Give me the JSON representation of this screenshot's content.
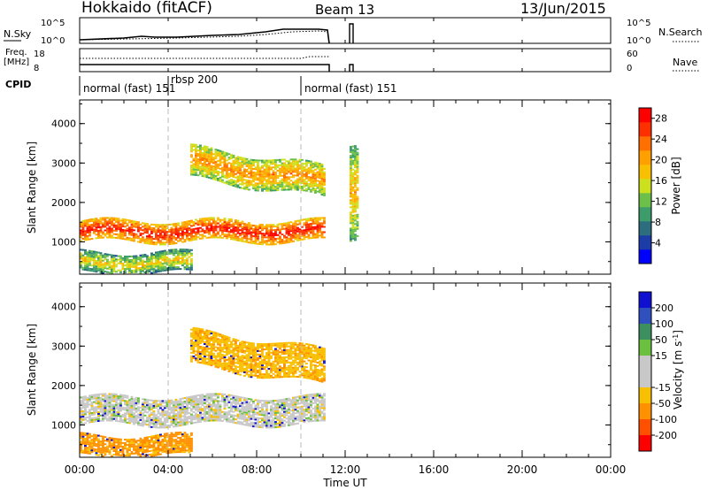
{
  "header": {
    "station": "Hokkaido (fitACF)",
    "beam": "Beam 13",
    "date": "13/Jun/2015"
  },
  "noise_panel": {
    "left_label": "N.Sky",
    "right_label": "N.Search",
    "left_ticks": [
      "10^5",
      "10^0"
    ],
    "right_ticks": [
      "10^5",
      "10^0"
    ]
  },
  "freq_panel": {
    "left_label": "Freq.",
    "left_unit": "[MHz]",
    "left_ticks": [
      "18",
      "8"
    ],
    "right_ticks": [
      "60",
      "0"
    ],
    "right_label": "Nave"
  },
  "cpid": {
    "label": "CPID",
    "segments": [
      {
        "label": "normal (fast) 151",
        "start": 0.0
      },
      {
        "label": "rbsp 200",
        "start": 4.0
      },
      {
        "label": "normal (fast) 151",
        "start": 10.0
      }
    ]
  },
  "chart_data": [
    {
      "type": "heatmap",
      "title": "",
      "ylabel": "Slant Range [km]",
      "xlabel": "Time UT",
      "xticks": [
        "00:00",
        "04:00",
        "08:00",
        "12:00",
        "16:00",
        "20:00",
        "00:00"
      ],
      "xlim_hours": [
        0,
        24
      ],
      "yticks": [
        "1000",
        "2000",
        "3000",
        "4000"
      ],
      "ylim": [
        180,
        4600
      ],
      "colorbar": {
        "label": "Power [dB]",
        "ticks": [
          "4",
          "8",
          "12",
          "16",
          "20",
          "24",
          "28"
        ],
        "range": [
          0,
          30
        ],
        "colors": [
          "#0000ff",
          "#1c3ca8",
          "#2c6e7e",
          "#3c9c6a",
          "#6cc04a",
          "#cde01e",
          "#f8c000",
          "#ffa000",
          "#ff7000",
          "#ff3000",
          "#ff0000"
        ]
      },
      "echo_regions": [
        {
          "t0": 0.0,
          "t1": 11.0,
          "r_low": 1000,
          "r_high": 1500,
          "power": 22
        },
        {
          "t0": 5.0,
          "t1": 11.0,
          "r_low": 2600,
          "r_high": 3400,
          "power": 16
        },
        {
          "t0": 0.0,
          "t1": 5.0,
          "r_low": 200,
          "r_high": 700,
          "power": 12
        },
        {
          "t0": 12.2,
          "t1": 12.5,
          "r_low": 1000,
          "r_high": 3400,
          "power": 14
        }
      ]
    },
    {
      "type": "heatmap",
      "title": "",
      "ylabel": "Slant Range [km]",
      "xlabel": "Time UT",
      "xticks": [
        "00:00",
        "04:00",
        "08:00",
        "12:00",
        "16:00",
        "20:00",
        "00:00"
      ],
      "xlim_hours": [
        0,
        24
      ],
      "yticks": [
        "1000",
        "2000",
        "3000",
        "4000"
      ],
      "ylim": [
        180,
        4600
      ],
      "colorbar": {
        "label": "Velocity [m s^-1]",
        "ticks": [
          "200",
          "100",
          "50",
          "15",
          "-15",
          "-50",
          "-100",
          "-200"
        ],
        "colors": [
          "#1010d0",
          "#3050c0",
          "#3c9060",
          "#6cc040",
          "#c8c8c8",
          "#c8c8c8",
          "#f8c000",
          "#ff9000",
          "#ff5000",
          "#ff0000"
        ]
      },
      "echo_regions": [
        {
          "t0": 0.0,
          "t1": 11.0,
          "r_low": 1000,
          "r_high": 1700,
          "velocity": 0
        },
        {
          "t0": 5.0,
          "t1": 11.0,
          "r_low": 2500,
          "r_high": 3400,
          "velocity": -40
        },
        {
          "t0": 0.0,
          "t1": 5.0,
          "r_low": 200,
          "r_high": 700,
          "velocity": -60
        }
      ]
    }
  ],
  "power_panel": {
    "ylabel": "Slant Range [km]",
    "colorbar_label": "Power [dB]"
  },
  "velocity_panel": {
    "ylabel": "Slant Range [km]",
    "colorbar_label": "Velocity [m s",
    "colorbar_label_sup": "-1",
    "colorbar_label_end": "]"
  },
  "x_axis": {
    "ticks": [
      "00:00",
      "04:00",
      "08:00",
      "12:00",
      "16:00",
      "20:00",
      "00:00"
    ],
    "label": "Time UT"
  }
}
